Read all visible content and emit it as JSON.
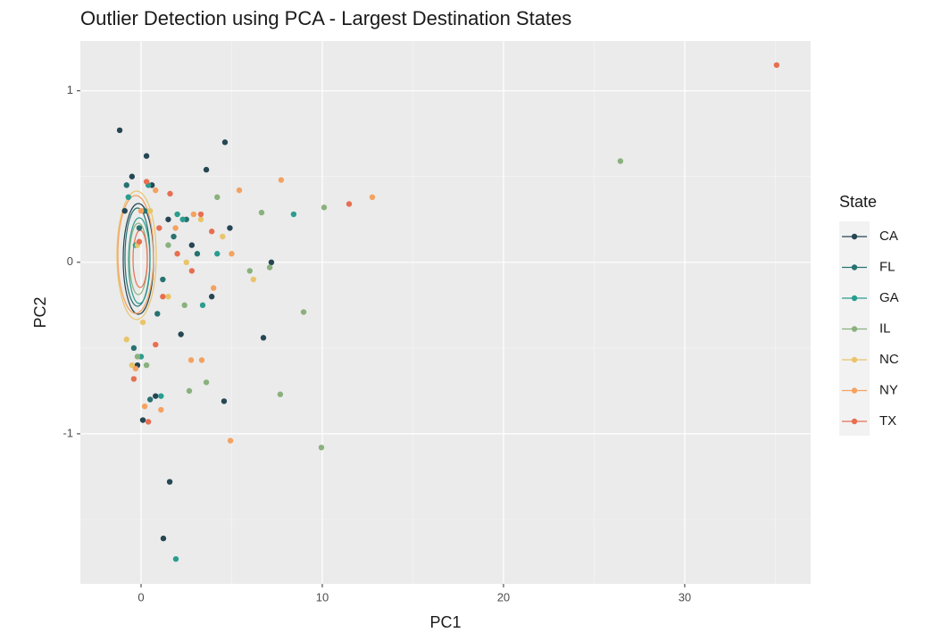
{
  "chart_data": {
    "type": "scatter",
    "title": "Outlier Detection using PCA - Largest Destination States",
    "x_label": "PC1",
    "y_label": "PC2",
    "legend_title": "State",
    "legend_position": "right",
    "grid": true,
    "xlim": [
      -3.35,
      36.95
    ],
    "ylim": [
      -1.875,
      1.29
    ],
    "xticks": [
      0,
      10,
      20,
      30
    ],
    "yticks": [
      -1,
      0,
      1
    ],
    "x_minor_ticks": [
      5,
      15,
      25,
      35
    ],
    "y_minor_ticks": [
      -1.5,
      -0.5,
      0.5
    ],
    "series": [
      {
        "name": "CA",
        "color": "#264653",
        "x": [
          -1.18,
          4.63,
          7.19,
          6.75,
          4.58,
          3.6,
          1.23,
          1.58,
          -0.5,
          0.3,
          0.8,
          1.5,
          2.8,
          3.9,
          -0.9,
          0.1,
          0.6,
          2.2,
          4.9,
          -0.2
        ],
        "values": [
          0.77,
          0.7,
          0.0,
          -0.44,
          -0.81,
          0.54,
          -1.61,
          -1.28,
          0.5,
          0.62,
          -0.78,
          0.25,
          0.1,
          -0.2,
          0.3,
          -0.92,
          0.45,
          -0.42,
          0.2,
          -0.6
        ]
      },
      {
        "name": "FL",
        "color": "#287271",
        "x": [
          -0.8,
          0.2,
          0.9,
          1.8,
          2.5,
          -0.4,
          0.5,
          3.1,
          1.2,
          -0.1
        ],
        "values": [
          0.45,
          0.3,
          -0.3,
          0.15,
          0.25,
          -0.5,
          -0.8,
          0.05,
          -0.1,
          0.2
        ]
      },
      {
        "name": "GA",
        "color": "#2a9d8f",
        "x": [
          8.42,
          1.92,
          -0.7,
          0.4,
          1.1,
          2.3,
          3.4,
          4.2,
          0.0,
          -0.3,
          2.0
        ],
        "values": [
          0.28,
          -1.73,
          0.38,
          0.45,
          -0.78,
          0.25,
          -0.25,
          0.05,
          -0.55,
          0.1,
          0.28
        ]
      },
      {
        "name": "IL",
        "color": "#8ab17d",
        "x": [
          26.45,
          10.1,
          8.97,
          9.95,
          7.68,
          2.66,
          7.1,
          6.65,
          3.6,
          4.2,
          6.0,
          -0.2,
          0.3,
          1.5,
          2.4
        ],
        "values": [
          0.59,
          0.32,
          -0.29,
          -1.08,
          -0.77,
          -0.75,
          -0.03,
          0.29,
          -0.7,
          0.38,
          -0.05,
          -0.55,
          -0.6,
          0.1,
          -0.25
        ]
      },
      {
        "name": "NC",
        "color": "#e9c46a",
        "x": [
          6.2,
          -0.8,
          -0.2,
          0.5,
          1.5,
          2.5,
          3.3,
          0.1,
          4.5,
          -0.5
        ],
        "values": [
          -0.1,
          -0.45,
          0.1,
          0.3,
          -0.2,
          0.0,
          0.25,
          -0.35,
          0.15,
          -0.6
        ]
      },
      {
        "name": "NY",
        "color": "#f4a261",
        "x": [
          12.76,
          7.73,
          4.93,
          5.42,
          3.35,
          2.76,
          1.1,
          -0.3,
          0.2,
          0.8,
          1.9,
          2.9,
          4.0,
          5.0,
          0.0
        ],
        "values": [
          0.38,
          0.48,
          -1.04,
          0.42,
          -0.57,
          -0.57,
          -0.86,
          -0.62,
          -0.84,
          0.42,
          0.2,
          0.28,
          -0.15,
          0.05,
          0.3
        ]
      },
      {
        "name": "TX",
        "color": "#e76f51",
        "x": [
          35.07,
          11.48,
          1.0,
          -0.4,
          0.3,
          0.8,
          1.6,
          2.8,
          3.9,
          0.4,
          1.2,
          2.0,
          3.3,
          -0.1
        ],
        "values": [
          1.15,
          0.34,
          0.2,
          -0.68,
          0.47,
          -0.48,
          0.4,
          -0.05,
          0.18,
          -0.93,
          -0.2,
          0.05,
          0.28,
          0.12
        ]
      }
    ]
  }
}
